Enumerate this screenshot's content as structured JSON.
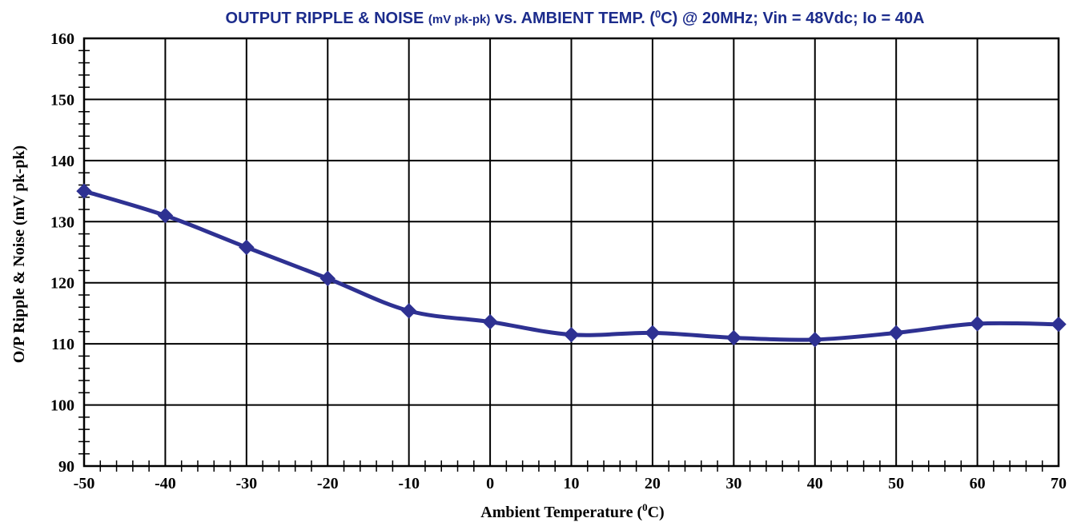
{
  "chart_data": {
    "type": "line",
    "title": {
      "part1": "OUTPUT RIPPLE & NOISE ",
      "part2": "(mV pk-pk)",
      "part3": " vs. AMBIENT TEMP. (",
      "sup": "0",
      "part4": "C)  @ 20MHz; Vin = 48Vdc; Io = 40A"
    },
    "xlabel": {
      "main": "Ambient Temperature (",
      "sup": "0",
      "end": "C)"
    },
    "ylabel": "O/P Ripple & Noise (mV pk-pk)",
    "xlim": [
      -50,
      70
    ],
    "ylim": [
      90,
      160
    ],
    "x_ticks": [
      "-50",
      "-40",
      "-30",
      "-20",
      "-10",
      "0",
      "10",
      "20",
      "30",
      "40",
      "50",
      "60",
      "70"
    ],
    "y_ticks": [
      "90",
      "100",
      "110",
      "120",
      "130",
      "140",
      "150",
      "160"
    ],
    "grid": true,
    "series": [
      {
        "color": "#2e3192",
        "x": [
          -50,
          -40,
          -30,
          -20,
          -10,
          0,
          10,
          20,
          30,
          40,
          50,
          60,
          70
        ],
        "y": [
          135,
          131,
          125.8,
          120.7,
          115.4,
          113.6,
          111.5,
          111.8,
          111,
          110.7,
          111.8,
          113.3,
          113.2
        ]
      }
    ]
  }
}
